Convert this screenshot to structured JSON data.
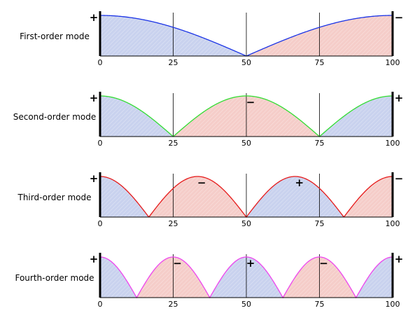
{
  "panels": [
    {
      "label": "First-order mode",
      "n": 1,
      "color": "#1a33e6",
      "signs": [
        {
          "at": 0,
          "s": "+"
        },
        {
          "at": 100,
          "s": "−"
        }
      ]
    },
    {
      "label": "Second-order mode",
      "n": 2,
      "color": "#33dd33",
      "signs": [
        {
          "at": 0,
          "s": "+"
        },
        {
          "at": 50,
          "s": "−"
        },
        {
          "at": 100,
          "s": "+"
        }
      ]
    },
    {
      "label": "Third-order mode",
      "n": 3,
      "color": "#e61a1a",
      "signs": [
        {
          "at": 0,
          "s": "+"
        },
        {
          "at": 33.3,
          "s": "−"
        },
        {
          "at": 66.7,
          "s": "+"
        },
        {
          "at": 100,
          "s": "−"
        }
      ]
    },
    {
      "label": "Fourth-order mode",
      "n": 4,
      "color": "#ee44ee",
      "signs": [
        {
          "at": 0,
          "s": "+"
        },
        {
          "at": 25,
          "s": "−"
        },
        {
          "at": 50,
          "s": "+"
        },
        {
          "at": 75,
          "s": "−"
        },
        {
          "at": 100,
          "s": "+"
        }
      ]
    }
  ],
  "ticks": [
    "0",
    "25",
    "50",
    "75",
    "100"
  ],
  "colors": {
    "positive_fill": "#c9d2ee",
    "negative_fill": "#f5cdc9",
    "axis": "#000000",
    "grid": "#000000"
  }
}
